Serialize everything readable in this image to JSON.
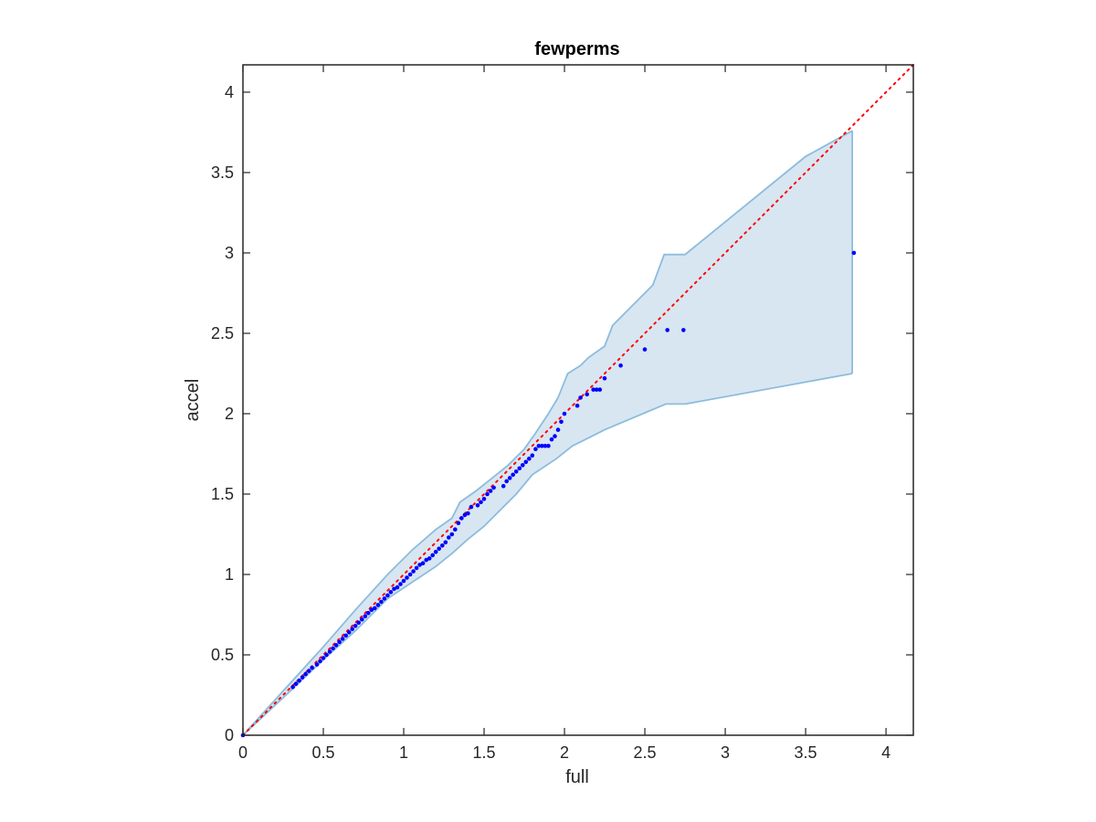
{
  "chart_data": {
    "type": "scatter",
    "title": "fewperms",
    "xlabel": "full",
    "ylabel": "accel",
    "xlim": [
      0,
      4.17
    ],
    "ylim": [
      0,
      4.17
    ],
    "x_ticks": [
      0,
      0.5,
      1,
      1.5,
      2,
      2.5,
      3,
      3.5,
      4
    ],
    "x_tick_labels": [
      "0",
      "0.5",
      "1",
      "1.5",
      "2",
      "2.5",
      "3",
      "3.5",
      "4"
    ],
    "y_ticks": [
      0,
      0.5,
      1,
      1.5,
      2,
      2.5,
      3,
      3.5,
      4
    ],
    "y_tick_labels": [
      "0",
      "0.5",
      "1",
      "1.5",
      "2",
      "2.5",
      "3",
      "3.5",
      "4"
    ],
    "grid": false,
    "box": true,
    "reference_line": {
      "from": [
        0,
        0
      ],
      "to": [
        4.17,
        4.17
      ],
      "style": "dotted",
      "color": "#ff0000"
    },
    "band": {
      "fill_color": "#d8e6f2",
      "edge_color": "#8cbcdc",
      "upper": [
        [
          0,
          0
        ],
        [
          0.3,
          0.33
        ],
        [
          0.5,
          0.55
        ],
        [
          0.7,
          0.78
        ],
        [
          0.9,
          1.0
        ],
        [
          1.05,
          1.15
        ],
        [
          1.2,
          1.28
        ],
        [
          1.3,
          1.35
        ],
        [
          1.35,
          1.45
        ],
        [
          1.45,
          1.52
        ],
        [
          1.55,
          1.6
        ],
        [
          1.65,
          1.68
        ],
        [
          1.75,
          1.78
        ],
        [
          1.82,
          1.88
        ],
        [
          1.9,
          2.0
        ],
        [
          1.96,
          2.1
        ],
        [
          2.02,
          2.25
        ],
        [
          2.1,
          2.3
        ],
        [
          2.15,
          2.35
        ],
        [
          2.25,
          2.42
        ],
        [
          2.3,
          2.55
        ],
        [
          2.45,
          2.7
        ],
        [
          2.55,
          2.8
        ],
        [
          2.62,
          2.99
        ],
        [
          2.75,
          2.99
        ],
        [
          3.5,
          3.6
        ],
        [
          3.79,
          3.76
        ]
      ],
      "lower": [
        [
          0,
          0
        ],
        [
          0.3,
          0.28
        ],
        [
          0.5,
          0.47
        ],
        [
          0.7,
          0.65
        ],
        [
          0.9,
          0.85
        ],
        [
          1.05,
          0.95
        ],
        [
          1.2,
          1.05
        ],
        [
          1.3,
          1.13
        ],
        [
          1.4,
          1.22
        ],
        [
          1.5,
          1.3
        ],
        [
          1.6,
          1.4
        ],
        [
          1.7,
          1.5
        ],
        [
          1.8,
          1.62
        ],
        [
          1.95,
          1.72
        ],
        [
          2.05,
          1.8
        ],
        [
          2.15,
          1.85
        ],
        [
          2.25,
          1.9
        ],
        [
          2.63,
          2.06
        ],
        [
          2.75,
          2.06
        ],
        [
          3.79,
          2.25
        ]
      ]
    },
    "series": [
      {
        "color": "#0000ff",
        "marker": "dot",
        "x": [
          0,
          0.31,
          0.33,
          0.35,
          0.37,
          0.39,
          0.41,
          0.43,
          0.46,
          0.48,
          0.5,
          0.52,
          0.54,
          0.56,
          0.58,
          0.6,
          0.62,
          0.64,
          0.66,
          0.68,
          0.7,
          0.72,
          0.74,
          0.76,
          0.78,
          0.8,
          0.82,
          0.84,
          0.86,
          0.88,
          0.9,
          0.92,
          0.94,
          0.96,
          0.98,
          1.0,
          1.02,
          1.04,
          1.06,
          1.08,
          1.1,
          1.12,
          1.14,
          1.16,
          1.18,
          1.2,
          1.22,
          1.24,
          1.26,
          1.28,
          1.3,
          1.32,
          1.34,
          1.36,
          1.38,
          1.4,
          1.42,
          1.46,
          1.48,
          1.5,
          1.52,
          1.54,
          1.56,
          1.62,
          1.64,
          1.66,
          1.68,
          1.7,
          1.72,
          1.74,
          1.76,
          1.78,
          1.8,
          1.82,
          1.84,
          1.86,
          1.88,
          1.9,
          1.92,
          1.94,
          1.96,
          1.98,
          2.0,
          2.08,
          2.1,
          2.14,
          2.18,
          2.2,
          2.22,
          2.25,
          2.35,
          2.5,
          2.64,
          2.74,
          3.8
        ],
        "y": [
          0,
          0.3,
          0.32,
          0.34,
          0.36,
          0.38,
          0.4,
          0.42,
          0.44,
          0.46,
          0.48,
          0.5,
          0.52,
          0.54,
          0.56,
          0.58,
          0.6,
          0.62,
          0.64,
          0.66,
          0.68,
          0.7,
          0.72,
          0.74,
          0.76,
          0.78,
          0.79,
          0.81,
          0.83,
          0.85,
          0.87,
          0.89,
          0.91,
          0.92,
          0.94,
          0.96,
          0.98,
          1.0,
          1.02,
          1.04,
          1.06,
          1.07,
          1.09,
          1.1,
          1.12,
          1.14,
          1.16,
          1.18,
          1.2,
          1.23,
          1.25,
          1.28,
          1.32,
          1.35,
          1.37,
          1.38,
          1.42,
          1.43,
          1.45,
          1.47,
          1.5,
          1.52,
          1.54,
          1.55,
          1.58,
          1.6,
          1.62,
          1.64,
          1.66,
          1.68,
          1.7,
          1.72,
          1.74,
          1.78,
          1.8,
          1.8,
          1.8,
          1.8,
          1.84,
          1.86,
          1.9,
          1.95,
          2.0,
          2.05,
          2.1,
          2.12,
          2.15,
          2.15,
          2.15,
          2.22,
          2.3,
          2.4,
          2.52,
          2.52,
          3.0
        ]
      }
    ]
  }
}
